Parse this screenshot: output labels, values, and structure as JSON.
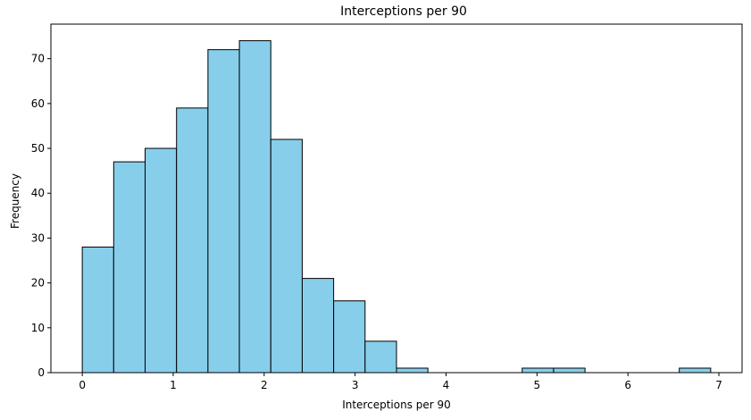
{
  "chart_data": {
    "type": "bar",
    "title": "Interceptions per 90",
    "xlabel": "Interceptions per 90",
    "ylabel": "Frequency",
    "bin_width": 0.3455,
    "bins": [
      {
        "start": 0.0,
        "count": 28
      },
      {
        "start": 0.3455,
        "count": 47
      },
      {
        "start": 0.691,
        "count": 50
      },
      {
        "start": 1.0365,
        "count": 59
      },
      {
        "start": 1.382,
        "count": 72
      },
      {
        "start": 1.7275,
        "count": 74
      },
      {
        "start": 2.073,
        "count": 52
      },
      {
        "start": 2.4185,
        "count": 21
      },
      {
        "start": 2.764,
        "count": 16
      },
      {
        "start": 3.1095,
        "count": 7
      },
      {
        "start": 3.455,
        "count": 1
      },
      {
        "start": 3.8005,
        "count": 0
      },
      {
        "start": 4.146,
        "count": 0
      },
      {
        "start": 4.4915,
        "count": 0
      },
      {
        "start": 4.837,
        "count": 1
      },
      {
        "start": 5.1825,
        "count": 1
      },
      {
        "start": 5.528,
        "count": 0
      },
      {
        "start": 5.8735,
        "count": 0
      },
      {
        "start": 6.219,
        "count": 0
      },
      {
        "start": 6.5645,
        "count": 1
      }
    ],
    "xlim": [
      -0.345,
      7.255
    ],
    "ylim": [
      0,
      77.7
    ],
    "xticks": [
      0,
      1,
      2,
      3,
      4,
      5,
      6,
      7
    ],
    "xtick_labels": [
      "0",
      "1",
      "2",
      "3",
      "4",
      "5",
      "6",
      "7"
    ],
    "yticks": [
      0,
      10,
      20,
      30,
      40,
      50,
      60,
      70
    ],
    "ytick_labels": [
      "0",
      "10",
      "20",
      "30",
      "40",
      "50",
      "60",
      "70"
    ],
    "grid": false,
    "legend": "none",
    "bar_color": "#87ceeb",
    "edge_color": "#000000"
  }
}
